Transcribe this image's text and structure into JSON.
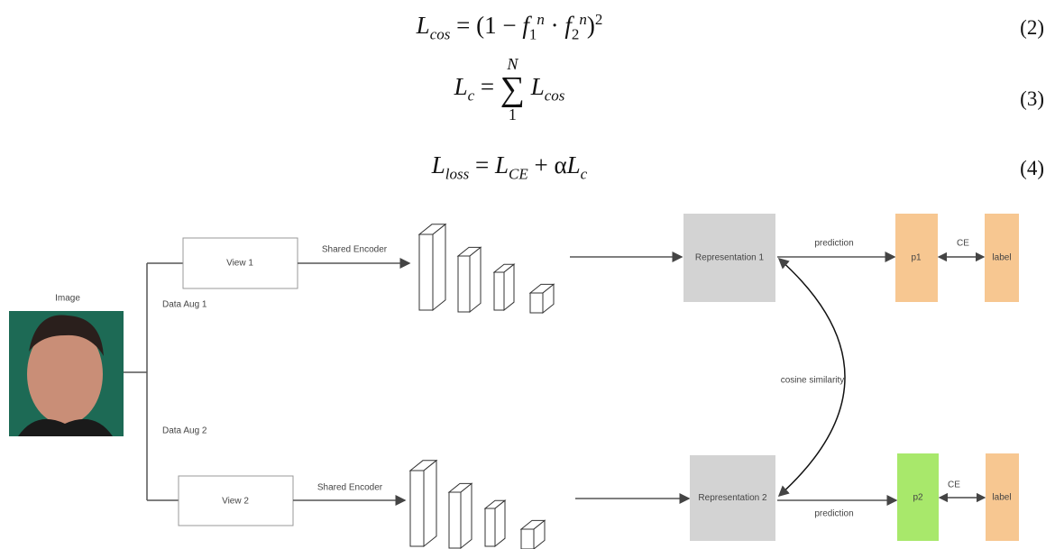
{
  "equations": [
    {
      "parts": [
        "L",
        "cos",
        " = (1 − ",
        "f",
        "1",
        "n",
        " · ",
        "f",
        "2",
        "n",
        ")",
        "2"
      ],
      "number": "(2)"
    },
    {
      "parts": [
        "L",
        "c",
        " = ",
        "∑",
        "N",
        "1",
        "L",
        "cos"
      ],
      "number": "(3)"
    },
    {
      "parts": [
        "L",
        "loss",
        " = ",
        "L",
        "CE",
        " + α",
        "L",
        "c"
      ],
      "number": "(4)"
    }
  ],
  "diagram": {
    "image_label": "Image",
    "data_aug": [
      "Data Aug 1",
      "Data Aug 2"
    ],
    "views": [
      "View 1",
      "View 2"
    ],
    "encoder": [
      "Shared Encoder",
      "Shared Encoder"
    ],
    "representations": [
      "Representation 1",
      "Representation 2"
    ],
    "prediction": [
      "prediction",
      "prediction"
    ],
    "outputs": [
      "p1",
      "p2"
    ],
    "ce": [
      "CE",
      "CE"
    ],
    "labels": [
      "label",
      "label"
    ],
    "similarity": "cosine similarity"
  }
}
